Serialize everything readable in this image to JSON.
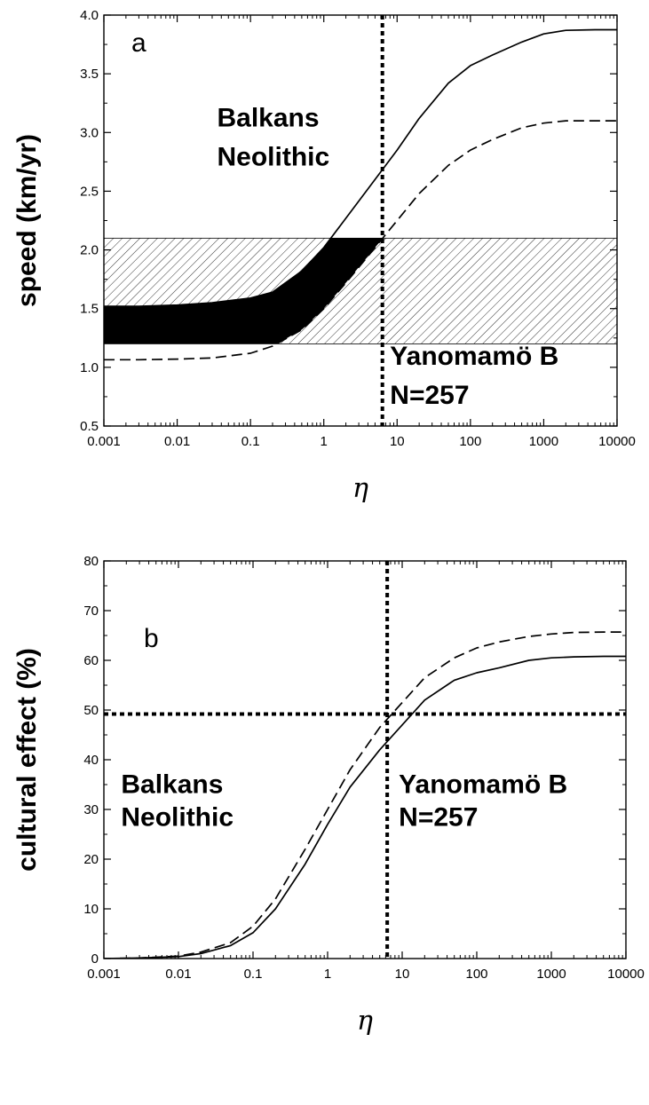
{
  "chart_data": [
    {
      "type": "line",
      "panel_label": "a",
      "xlabel": "η",
      "ylabel": "speed (km/yr)",
      "xscale": "log",
      "xlim": [
        0.001,
        10000
      ],
      "ylim": [
        0.5,
        4.0
      ],
      "x_tick_labels": [
        "0.001",
        "0.01",
        "0.1",
        "1",
        "10",
        "100",
        "1000",
        "10000"
      ],
      "x_tick_values": [
        0.001,
        0.01,
        0.1,
        1,
        10,
        100,
        1000,
        10000
      ],
      "y_tick_labels": [
        "0.5",
        "1.0",
        "1.5",
        "2.0",
        "2.5",
        "3.0",
        "3.5",
        "4.0"
      ],
      "y_tick_values": [
        0.5,
        1.0,
        1.5,
        2.0,
        2.5,
        3.0,
        3.5,
        4.0
      ],
      "series": [
        {
          "style": "solid",
          "x": [
            0.001,
            0.003,
            0.01,
            0.03,
            0.1,
            0.2,
            0.5,
            1,
            2,
            5,
            10,
            20,
            50,
            100,
            200,
            500,
            1000,
            2000,
            5000,
            10000
          ],
          "y": [
            1.52,
            1.52,
            1.53,
            1.55,
            1.59,
            1.64,
            1.82,
            2.02,
            2.27,
            2.6,
            2.85,
            3.12,
            3.42,
            3.57,
            3.66,
            3.77,
            3.84,
            3.87,
            3.875,
            3.875
          ]
        },
        {
          "style": "dashed",
          "x": [
            0.001,
            0.003,
            0.01,
            0.03,
            0.1,
            0.2,
            0.5,
            1,
            2,
            5,
            10,
            20,
            50,
            100,
            200,
            500,
            1000,
            2000,
            5000,
            10000
          ],
          "y": [
            1.065,
            1.065,
            1.07,
            1.08,
            1.12,
            1.18,
            1.32,
            1.5,
            1.72,
            2.02,
            2.25,
            2.48,
            2.72,
            2.85,
            2.94,
            3.04,
            3.08,
            3.1,
            3.1,
            3.1
          ]
        }
      ],
      "hatched_band": {
        "y0": 1.2,
        "y1": 2.1
      },
      "vertical_line": {
        "x": 6.3
      },
      "annotations": [
        {
          "text": "Balkans",
          "x": 0.035,
          "y": 3.05
        },
        {
          "text": "Neolithic",
          "x": 0.035,
          "y": 2.72
        },
        {
          "text": "Yanomamö B",
          "x": 8,
          "y": 1.02
        },
        {
          "text": "N=257",
          "x": 8,
          "y": 0.69
        }
      ]
    },
    {
      "type": "line",
      "panel_label": "b",
      "xlabel": "η",
      "ylabel": "cultural effect (%)",
      "xscale": "log",
      "xlim": [
        0.001,
        10000
      ],
      "ylim": [
        0,
        80
      ],
      "x_tick_labels": [
        "0.001",
        "0.01",
        "0.1",
        "1",
        "10",
        "100",
        "1000",
        "10000"
      ],
      "x_tick_values": [
        0.001,
        0.01,
        0.1,
        1,
        10,
        100,
        1000,
        10000
      ],
      "y_tick_labels": [
        "0",
        "10",
        "20",
        "30",
        "40",
        "50",
        "60",
        "70",
        "80"
      ],
      "y_tick_values": [
        0,
        10,
        20,
        30,
        40,
        50,
        60,
        70,
        80
      ],
      "series": [
        {
          "style": "solid",
          "x": [
            0.001,
            0.003,
            0.01,
            0.02,
            0.05,
            0.1,
            0.2,
            0.5,
            1,
            2,
            5,
            10,
            20,
            50,
            100,
            200,
            500,
            1000,
            2000,
            5000,
            10000
          ],
          "y": [
            0,
            0.1,
            0.4,
            1.0,
            2.6,
            5.2,
            10,
            19,
            27,
            34.5,
            42,
            47,
            52,
            56,
            57.5,
            58.5,
            60,
            60.5,
            60.7,
            60.8,
            60.8
          ]
        },
        {
          "style": "dashed",
          "x": [
            0.001,
            0.003,
            0.01,
            0.02,
            0.05,
            0.1,
            0.2,
            0.5,
            1,
            2,
            5,
            10,
            20,
            50,
            100,
            200,
            500,
            1000,
            2000,
            5000,
            10000
          ],
          "y": [
            0,
            0.1,
            0.5,
            1.3,
            3.2,
            6.5,
            12,
            22,
            30,
            38,
            46.5,
            51.5,
            56.5,
            60.5,
            62.5,
            63.7,
            64.8,
            65.3,
            65.6,
            65.7,
            65.7
          ]
        }
      ],
      "horizontal_line": {
        "y": 49.2
      },
      "vertical_line": {
        "x": 6.3
      },
      "annotations": [
        {
          "text": "Balkans",
          "x": 0.0017,
          "y": 33.3
        },
        {
          "text": "Neolithic",
          "x": 0.0017,
          "y": 26.7
        },
        {
          "text": "Yanomamö B",
          "x": 9,
          "y": 33.3
        },
        {
          "text": "N=257",
          "x": 9,
          "y": 26.7
        }
      ]
    }
  ]
}
